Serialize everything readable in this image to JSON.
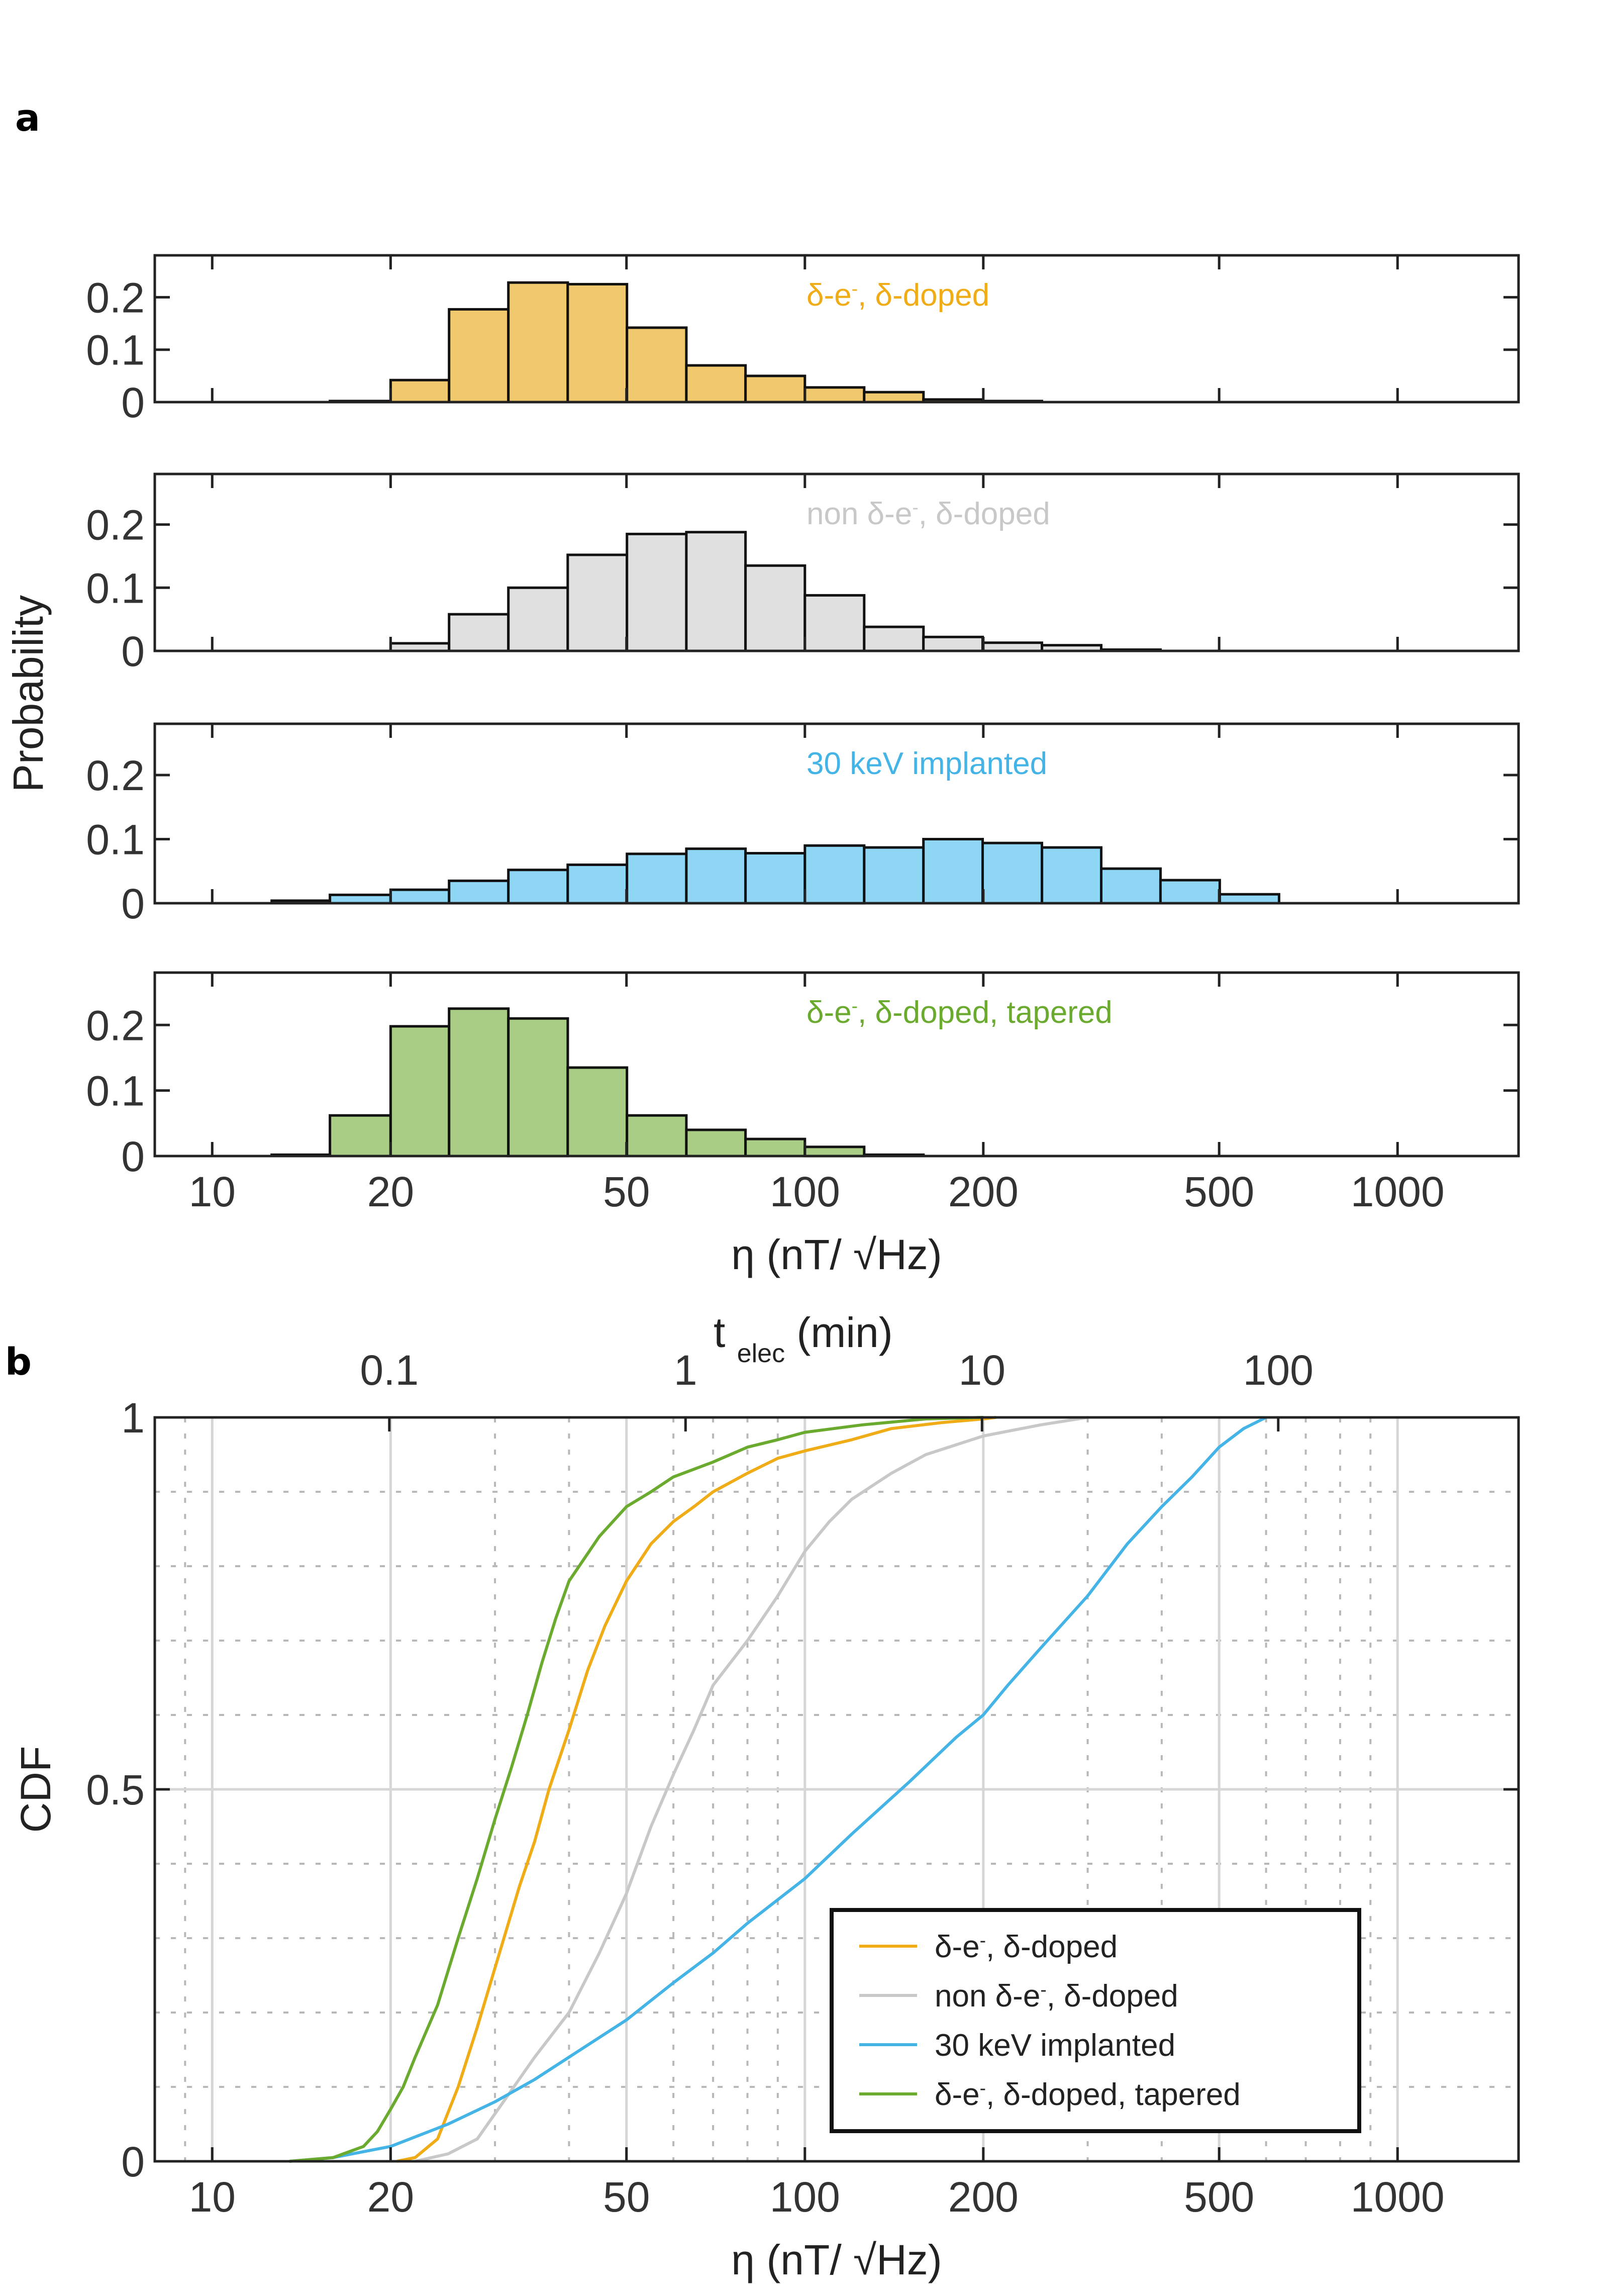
{
  "figure": {
    "panel_a_label": "a",
    "panel_b_label": "b"
  },
  "colors": {
    "delta_doped": "#f0c96e",
    "non_delta": "#e0e0e0",
    "implanted": "#8fd6f5",
    "tapered": "#a9cd85",
    "line_delta_doped": "#efac17",
    "line_non_delta": "#c8c8c8",
    "line_implanted": "#44b4e6",
    "line_tapered": "#6aaa2e"
  },
  "chart_data": [
    {
      "type": "bar",
      "panel": "a",
      "title": "δ-e⁻, δ-doped",
      "xlabel": "η (nT/ √Hz)",
      "ylabel": "Probability",
      "xscale": "log",
      "xlim": [
        8,
        1600
      ],
      "ylim": [
        0,
        0.28
      ],
      "xticks": [
        10,
        20,
        50,
        100,
        200,
        500,
        1000
      ],
      "yticks": [
        0,
        0.1,
        0.2
      ],
      "bin_edges": [
        12.6,
        15.8,
        20,
        25.1,
        31.6,
        39.8,
        50.1,
        63.1,
        79.4,
        100,
        125.9,
        158.5,
        199.5,
        251.2,
        316.2,
        398.1,
        501.2,
        631
      ],
      "values": [
        0,
        0.002,
        0.042,
        0.177,
        0.228,
        0.225,
        0.142,
        0.07,
        0.05,
        0.028,
        0.019,
        0.005,
        0.002,
        0,
        0,
        0,
        0
      ]
    },
    {
      "type": "bar",
      "panel": "a",
      "title": "non δ-e⁻, δ-doped",
      "xscale": "log",
      "xlim": [
        8,
        1600
      ],
      "ylim": [
        0,
        0.28
      ],
      "yticks": [
        0,
        0.1,
        0.2
      ],
      "bin_edges": [
        12.6,
        15.8,
        20,
        25.1,
        31.6,
        39.8,
        50.1,
        63.1,
        79.4,
        100,
        125.9,
        158.5,
        199.5,
        251.2,
        316.2,
        398.1,
        501.2,
        631
      ],
      "values": [
        0,
        0,
        0.012,
        0.058,
        0.1,
        0.152,
        0.185,
        0.188,
        0.135,
        0.088,
        0.038,
        0.022,
        0.013,
        0.009,
        0.002,
        0,
        0
      ]
    },
    {
      "type": "bar",
      "panel": "a",
      "title": "30 keV implanted",
      "xscale": "log",
      "xlim": [
        8,
        1600
      ],
      "ylim": [
        0,
        0.28
      ],
      "yticks": [
        0,
        0.1,
        0.2
      ],
      "bin_edges": [
        12.6,
        15.8,
        20,
        25.1,
        31.6,
        39.8,
        50.1,
        63.1,
        79.4,
        100,
        125.9,
        158.5,
        199.5,
        251.2,
        316.2,
        398.1,
        501.2,
        631
      ],
      "values": [
        0.004,
        0.013,
        0.021,
        0.035,
        0.052,
        0.06,
        0.077,
        0.085,
        0.078,
        0.09,
        0.087,
        0.1,
        0.094,
        0.087,
        0.054,
        0.036,
        0.014
      ]
    },
    {
      "type": "bar",
      "panel": "a",
      "title": "δ-e⁻, δ-doped, tapered",
      "xscale": "log",
      "xlim": [
        8,
        1600
      ],
      "ylim": [
        0,
        0.28
      ],
      "yticks": [
        0,
        0.1,
        0.2
      ],
      "bin_edges": [
        12.6,
        15.8,
        20,
        25.1,
        31.6,
        39.8,
        50.1,
        63.1,
        79.4,
        100,
        125.9,
        158.5,
        199.5,
        251.2,
        316.2,
        398.1,
        501.2,
        631
      ],
      "values": [
        0.002,
        0.062,
        0.198,
        0.225,
        0.21,
        0.135,
        0.062,
        0.04,
        0.026,
        0.014,
        0.002,
        0,
        0,
        0,
        0,
        0,
        0
      ]
    },
    {
      "type": "line",
      "panel": "b",
      "xlabel": "η (nT/ √Hz)",
      "ylabel": "CDF",
      "top_xlabel_main": "t",
      "top_xlabel_sub": "elec",
      "top_xlabel_unit": "(min)",
      "xscale": "log",
      "xlim": [
        8,
        1600
      ],
      "ylim": [
        0,
        1
      ],
      "xticks": [
        10,
        20,
        50,
        100,
        200,
        500,
        1000
      ],
      "yticks": [
        0,
        0.5,
        1
      ],
      "top_xticks_eta": [
        19.9,
        62.9,
        199,
        629
      ],
      "top_xticklabels": [
        "0.1",
        "1",
        "10",
        "100"
      ],
      "legend_position": "bottom-right",
      "series": [
        {
          "name": "δ-e⁻, δ-doped",
          "x": [
            20.5,
            22,
            24,
            26,
            28,
            30,
            33,
            35,
            37,
            40,
            43,
            46,
            50,
            55,
            60,
            65,
            70,
            80,
            90,
            100,
            120,
            140,
            170,
            200,
            210
          ],
          "y": [
            0,
            0.005,
            0.03,
            0.1,
            0.18,
            0.26,
            0.37,
            0.43,
            0.5,
            0.58,
            0.66,
            0.72,
            0.78,
            0.83,
            0.86,
            0.88,
            0.9,
            0.925,
            0.945,
            0.955,
            0.97,
            0.985,
            0.993,
            0.998,
            1
          ]
        },
        {
          "name": "non δ-e⁻, δ-doped",
          "x": [
            22,
            25,
            28,
            31,
            35,
            40,
            45,
            50,
            55,
            60,
            65,
            70,
            80,
            90,
            100,
            110,
            120,
            140,
            160,
            200,
            250,
            300
          ],
          "y": [
            0,
            0.01,
            0.03,
            0.08,
            0.14,
            0.2,
            0.28,
            0.36,
            0.45,
            0.52,
            0.58,
            0.64,
            0.7,
            0.76,
            0.82,
            0.86,
            0.89,
            0.925,
            0.95,
            0.975,
            0.99,
            1
          ]
        },
        {
          "name": "30 keV implanted",
          "x": [
            13.5,
            16,
            20,
            25,
            30,
            35,
            40,
            50,
            60,
            70,
            80,
            100,
            120,
            150,
            180,
            200,
            220,
            250,
            300,
            350,
            400,
            450,
            500,
            550,
            600
          ],
          "y": [
            0,
            0.005,
            0.02,
            0.05,
            0.08,
            0.11,
            0.14,
            0.19,
            0.24,
            0.28,
            0.32,
            0.38,
            0.44,
            0.51,
            0.57,
            0.6,
            0.64,
            0.69,
            0.76,
            0.83,
            0.88,
            0.92,
            0.96,
            0.985,
            1
          ]
        },
        {
          "name": "δ-e⁻, δ-doped, tapered",
          "x": [
            13.5,
            16,
            18,
            19,
            20,
            21,
            22,
            24,
            26,
            28,
            30,
            32,
            34,
            36,
            38,
            40,
            45,
            50,
            55,
            60,
            70,
            80,
            90,
            100,
            125,
            160,
            200
          ],
          "y": [
            0,
            0.005,
            0.02,
            0.04,
            0.07,
            0.1,
            0.14,
            0.21,
            0.3,
            0.38,
            0.46,
            0.53,
            0.6,
            0.67,
            0.73,
            0.78,
            0.84,
            0.88,
            0.9,
            0.92,
            0.94,
            0.96,
            0.97,
            0.98,
            0.99,
            0.998,
            1
          ]
        }
      ]
    }
  ]
}
